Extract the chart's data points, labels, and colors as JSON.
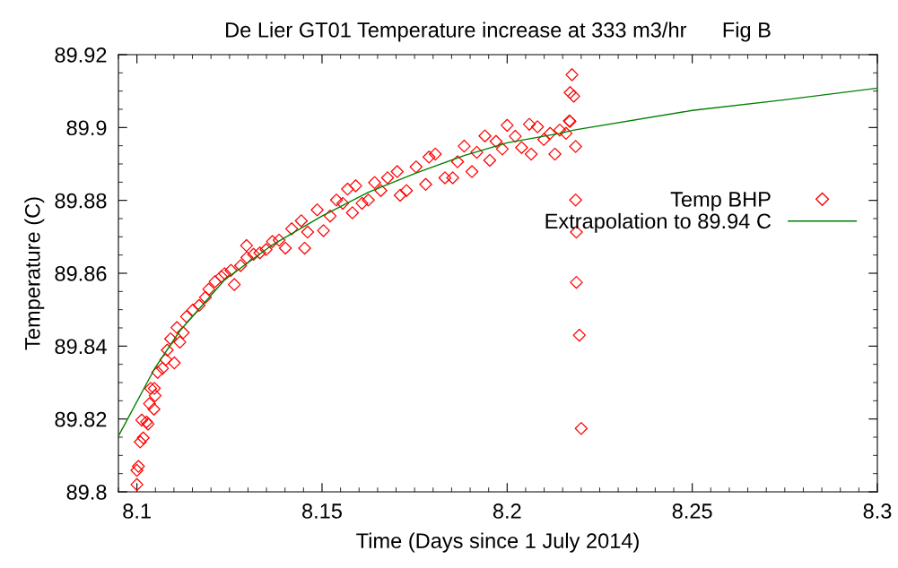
{
  "chart_data": {
    "type": "scatter",
    "title": "De Lier GT01 Temperature increase at 333 m3/hr      Fig B",
    "xlabel": "Time (Days since 1 July 2014)",
    "ylabel": "Temperature (C)",
    "xlim": [
      8.095,
      8.3
    ],
    "ylim": [
      89.8,
      89.92
    ],
    "xticks": [
      8.1,
      8.15,
      8.2,
      8.25,
      8.3
    ],
    "yticks": [
      89.8,
      89.82,
      89.84,
      89.86,
      89.88,
      89.9,
      89.92
    ],
    "grid": false,
    "legend": "right",
    "series": [
      {
        "name": "Temp BHP",
        "color": "#ff0000",
        "marker": "diamond",
        "x": [
          8.1,
          8.1,
          8.1004,
          8.1009,
          8.1017,
          8.1013,
          8.1026,
          8.103,
          8.1034,
          8.1037,
          8.1046,
          8.1047,
          8.1049,
          8.1056,
          8.1069,
          8.1078,
          8.1082,
          8.1091,
          8.1101,
          8.1108,
          8.1116,
          8.1125,
          8.1134,
          8.1151,
          8.1168,
          8.1185,
          8.1194,
          8.1211,
          8.1228,
          8.1237,
          8.1254,
          8.1263,
          8.128,
          8.1297,
          8.1296,
          8.1315,
          8.1332,
          8.1349,
          8.1366,
          8.1384,
          8.1401,
          8.1418,
          8.1444,
          8.1453,
          8.1461,
          8.1487,
          8.1504,
          8.1522,
          8.1539,
          8.1556,
          8.1569,
          8.1582,
          8.1591,
          8.1608,
          8.1625,
          8.1642,
          8.1659,
          8.1677,
          8.1703,
          8.1711,
          8.1728,
          8.1754,
          8.178,
          8.1789,
          8.1806,
          8.1832,
          8.1853,
          8.1866,
          8.1884,
          8.1905,
          8.1918,
          8.194,
          8.1953,
          8.197,
          8.1987,
          8.2,
          8.2022,
          8.2039,
          8.206,
          8.2065,
          8.2082,
          8.2099,
          8.2116,
          8.2129,
          8.2142,
          8.2159,
          8.2168,
          8.2175,
          8.217,
          8.218,
          8.217,
          8.2185,
          8.2185,
          8.2187,
          8.2187,
          8.2195,
          8.22
        ],
        "values": [
          89.802,
          89.8059,
          89.807,
          89.8137,
          89.8148,
          89.8197,
          89.8192,
          89.8186,
          89.8242,
          89.8284,
          89.8227,
          89.8284,
          89.8264,
          89.8328,
          89.8339,
          89.8363,
          89.8389,
          89.842,
          89.8354,
          89.8451,
          89.8411,
          89.8437,
          89.8481,
          89.8499,
          89.8512,
          89.8534,
          89.8556,
          89.8577,
          89.8591,
          89.8599,
          89.8608,
          89.8569,
          89.8621,
          89.8643,
          89.8676,
          89.8652,
          89.8656,
          89.8665,
          89.8687,
          89.8691,
          89.8669,
          89.8722,
          89.8744,
          89.8669,
          89.8713,
          89.8774,
          89.8717,
          89.8757,
          89.8801,
          89.8792,
          89.8831,
          89.8766,
          89.884,
          89.8792,
          89.8801,
          89.8849,
          89.8827,
          89.8862,
          89.8879,
          89.8814,
          89.8827,
          89.8892,
          89.8844,
          89.8919,
          89.8927,
          89.8862,
          89.8862,
          89.8906,
          89.8949,
          89.8879,
          89.8932,
          89.8977,
          89.891,
          89.8962,
          89.8941,
          89.9006,
          89.8976,
          89.8945,
          89.9009,
          89.8927,
          89.9002,
          89.8967,
          89.8984,
          89.8927,
          89.8993,
          89.8984,
          89.9018,
          89.9145,
          89.9096,
          89.9086,
          89.9017,
          89.8948,
          89.8801,
          89.8713,
          89.8575,
          89.843,
          89.8174
        ]
      },
      {
        "name": "Extrapolation to 89.94 C",
        "type": "line",
        "color": "#008000",
        "line_style": "solid",
        "marker": "none",
        "x": [
          8.0951,
          8.1047,
          8.1116,
          8.1237,
          8.1366,
          8.15,
          8.1625,
          8.1754,
          8.1884,
          8.2,
          8.2142,
          8.2181,
          8.25,
          8.275,
          8.3
        ],
        "values": [
          89.8155,
          89.8337,
          89.8442,
          89.8582,
          89.8678,
          89.8757,
          89.8822,
          89.8875,
          89.8923,
          89.8958,
          89.8984,
          89.8993,
          89.9047,
          89.9076,
          89.9108
        ]
      }
    ]
  }
}
